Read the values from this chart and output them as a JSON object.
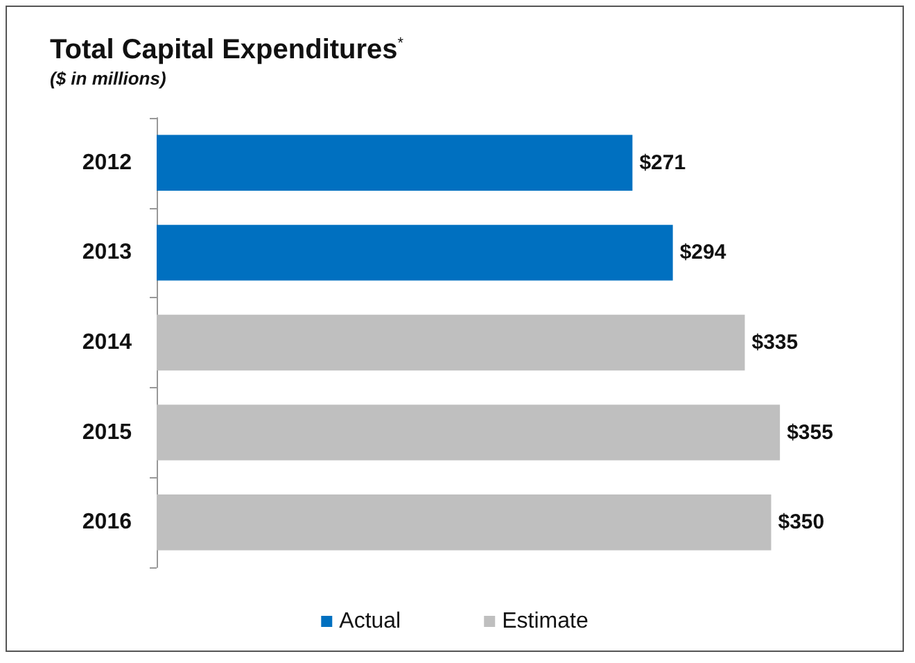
{
  "chart_data": {
    "type": "bar",
    "orientation": "horizontal",
    "title": "Total Capital Expenditures$^{*}$",
    "subtitle": "($ in millions)",
    "categories": [
      "2012",
      "2013",
      "2014",
      "2015",
      "2016"
    ],
    "series": [
      {
        "name": "Actual",
        "color": "#0070c0",
        "values": [
          271,
          294,
          null,
          null,
          null
        ],
        "value_labels": [
          "$271",
          "$294",
          null,
          null,
          null
        ]
      },
      {
        "name": "Estimate",
        "color": "#bfbfbf",
        "values": [
          null,
          null,
          335,
          355,
          350
        ],
        "value_labels": [
          null,
          null,
          "$335",
          "$355",
          "$350"
        ]
      }
    ],
    "legend": "bottom"
  }
}
